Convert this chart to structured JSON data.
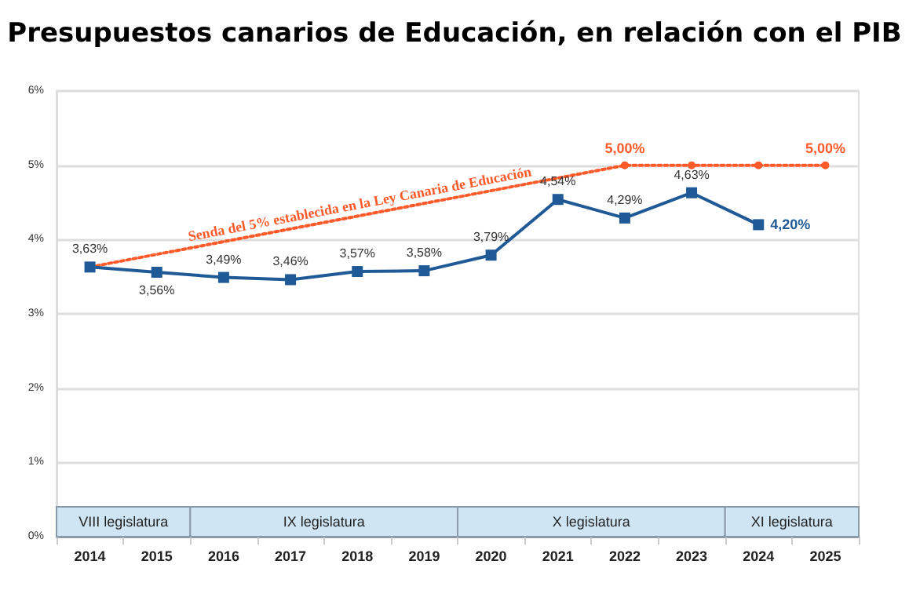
{
  "chart_data": {
    "type": "line",
    "title": "Presupuestos canarios de Educación, en relación con el PIB",
    "categories": [
      "2014",
      "2015",
      "2016",
      "2017",
      "2018",
      "2019",
      "2020",
      "2021",
      "2022",
      "2023",
      "2024",
      "2025"
    ],
    "series": [
      {
        "color": "#1f5a96",
        "marker": "square",
        "line_style": "solid",
        "values": [
          3.63,
          3.56,
          3.49,
          3.46,
          3.57,
          3.58,
          3.79,
          4.54,
          4.29,
          4.63,
          4.2,
          null
        ],
        "value_labels": [
          "3,63%",
          "3,56%",
          "3,49%",
          "3,46%",
          "3,57%",
          "3,58%",
          "3,79%",
          "4,54%",
          "4,29%",
          "4,63%",
          "4,20%",
          null
        ]
      },
      {
        "color": "#ff5a2a",
        "marker": "circle",
        "line_style": "dotted",
        "values": [
          3.63,
          null,
          null,
          null,
          null,
          null,
          null,
          null,
          5.0,
          5.0,
          5.0,
          5.0
        ],
        "value_labels": [
          null,
          null,
          null,
          null,
          null,
          null,
          null,
          null,
          "5,00%",
          null,
          null,
          "5,00%"
        ]
      }
    ],
    "ylim": [
      0,
      6
    ],
    "yticks": [
      {
        "value": 0,
        "label": "0%"
      },
      {
        "value": 1,
        "label": "1%"
      },
      {
        "value": 2,
        "label": "2%"
      },
      {
        "value": 3,
        "label": "3%"
      },
      {
        "value": 4,
        "label": "4%"
      },
      {
        "value": 5,
        "label": "5%"
      },
      {
        "value": 6,
        "label": "6%"
      }
    ],
    "grid": "y",
    "bands": [
      {
        "axis": "x",
        "from": "2014",
        "to": "2015",
        "label": "VIII legislatura",
        "color": "#cfe5f4"
      },
      {
        "axis": "x",
        "from": "2016",
        "to": "2019",
        "label": "IX legislatura",
        "color": "#cfe5f4"
      },
      {
        "axis": "x",
        "from": "2020",
        "to": "2023",
        "label": "X legislatura",
        "color": "#cfe5f4"
      },
      {
        "axis": "x",
        "from": "2024",
        "to": "2025",
        "label": "XI legislatura",
        "color": "#cfe5f4"
      }
    ],
    "annotations": [
      "Senda del 5% establecida en la Ley Canaria de Educación"
    ]
  }
}
